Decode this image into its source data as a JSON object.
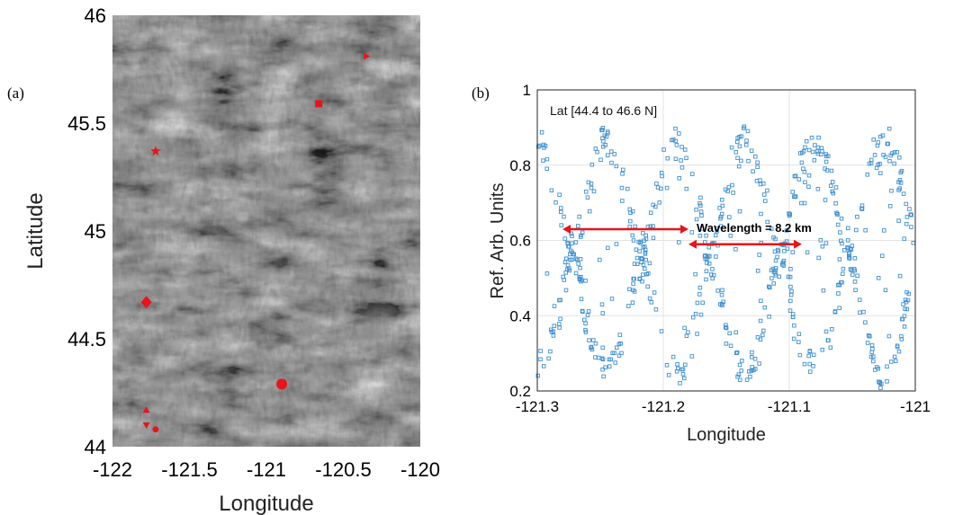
{
  "chart_data": [
    {
      "type": "heatmap",
      "panel_label": "(a)",
      "xlabel": "Longitude",
      "ylabel": "Latitude",
      "xlim": [
        -122,
        -120
      ],
      "ylim": [
        44,
        46
      ],
      "x_ticks": [
        "-122",
        "-121.5",
        "-121",
        "-120.5",
        "-120"
      ],
      "y_ticks": [
        "44",
        "44.5",
        "45",
        "45.5",
        "46"
      ],
      "colormap": "grayscale",
      "markers": [
        {
          "shape": "triangle-right",
          "lon": -120.35,
          "lat": 45.81
        },
        {
          "shape": "square",
          "lon": -120.66,
          "lat": 45.59
        },
        {
          "shape": "star",
          "lon": -121.72,
          "lat": 45.37
        },
        {
          "shape": "diamond",
          "lon": -121.78,
          "lat": 44.67
        },
        {
          "shape": "circle",
          "lon": -120.9,
          "lat": 44.29
        },
        {
          "shape": "triangle-up",
          "lon": -121.78,
          "lat": 44.17
        },
        {
          "shape": "triangle-down",
          "lon": -121.78,
          "lat": 44.1
        },
        {
          "shape": "circle",
          "lon": -121.72,
          "lat": 44.08
        }
      ],
      "marker_color": "#e8141a"
    },
    {
      "type": "scatter",
      "panel_label": "(b)",
      "xlabel": "Longitude",
      "ylabel": "Ref. Arb. Units",
      "annotation_box": "Lat [44.4 to 46.6 N]",
      "xlim": [
        -121.3,
        -121
      ],
      "ylim": [
        0.2,
        1
      ],
      "x_ticks": [
        "-121.3",
        "-121.2",
        "-121.1",
        "-121"
      ],
      "y_ticks": [
        "0.2",
        "0.4",
        "0.6",
        "0.8",
        "1"
      ],
      "grid": true,
      "marker": "open-square",
      "marker_color": "#3d8fd1",
      "points": {
        "n": 650,
        "envelope_peaks": [
          {
            "lon": -121.3,
            "ref": 0.9
          },
          {
            "lon": -121.19,
            "ref": 0.87
          },
          {
            "lon": -121.085,
            "ref": 0.87
          }
        ],
        "envelope_minima": [
          {
            "lon": -121.25,
            "ref": 0.2
          },
          {
            "lon": -121.14,
            "ref": 0.2
          },
          {
            "lon": -121.02,
            "ref": 0.2
          }
        ],
        "crossing_peak_ref": 0.6
      },
      "arrows": [
        {
          "from_lon": -121.28,
          "to_lon": -121.18,
          "ref": 0.63
        },
        {
          "from_lon": -121.18,
          "to_lon": -121.09,
          "ref": 0.59
        }
      ],
      "arrow_label": "Wavelength = 8.2 km",
      "arrow_color": "#e8141a"
    }
  ]
}
